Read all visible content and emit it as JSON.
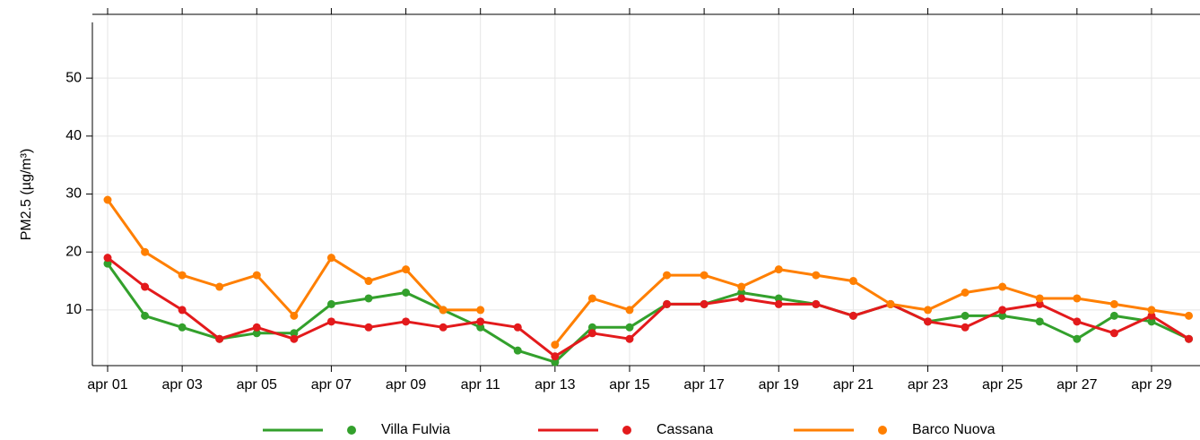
{
  "chart_data": {
    "type": "line",
    "y_label": "PM2.5 (µg/m³)",
    "categories": [
      "apr 01",
      null,
      "apr 03",
      null,
      "apr 05",
      null,
      "apr 07",
      null,
      "apr 09",
      null,
      "apr 11",
      null,
      "apr 13",
      null,
      "apr 15",
      null,
      "apr 17",
      null,
      "apr 19",
      null,
      "apr 21",
      null,
      "apr 23",
      null,
      "apr 25",
      null,
      "apr 27",
      null,
      "apr 29",
      null
    ],
    "series": [
      {
        "name": "Villa Fulvia",
        "color": "#33a02c",
        "values": [
          18,
          9,
          7,
          5,
          6,
          6,
          11,
          12,
          13,
          10,
          7,
          3,
          1,
          7,
          7,
          11,
          11,
          13,
          12,
          11,
          9,
          11,
          8,
          9,
          9,
          8,
          5,
          9,
          8,
          5
        ]
      },
      {
        "name": "Cassana",
        "color": "#e31a1c",
        "values": [
          19,
          14,
          10,
          5,
          7,
          5,
          8,
          7,
          8,
          7,
          8,
          7,
          2,
          6,
          5,
          11,
          11,
          12,
          11,
          11,
          9,
          11,
          8,
          7,
          10,
          11,
          8,
          6,
          9,
          5
        ]
      },
      {
        "name": "Barco Nuova",
        "color": "#ff7f00",
        "values": [
          29,
          20,
          16,
          14,
          16,
          9,
          19,
          15,
          17,
          10,
          10,
          null,
          4,
          12,
          10,
          16,
          16,
          14,
          17,
          16,
          15,
          11,
          10,
          13,
          14,
          12,
          12,
          11,
          10,
          9
        ]
      }
    ],
    "ylim": [
      0.4,
      61
    ],
    "yticks": [
      10,
      20,
      30,
      40,
      50
    ],
    "grid": true,
    "legend": "bottom"
  }
}
